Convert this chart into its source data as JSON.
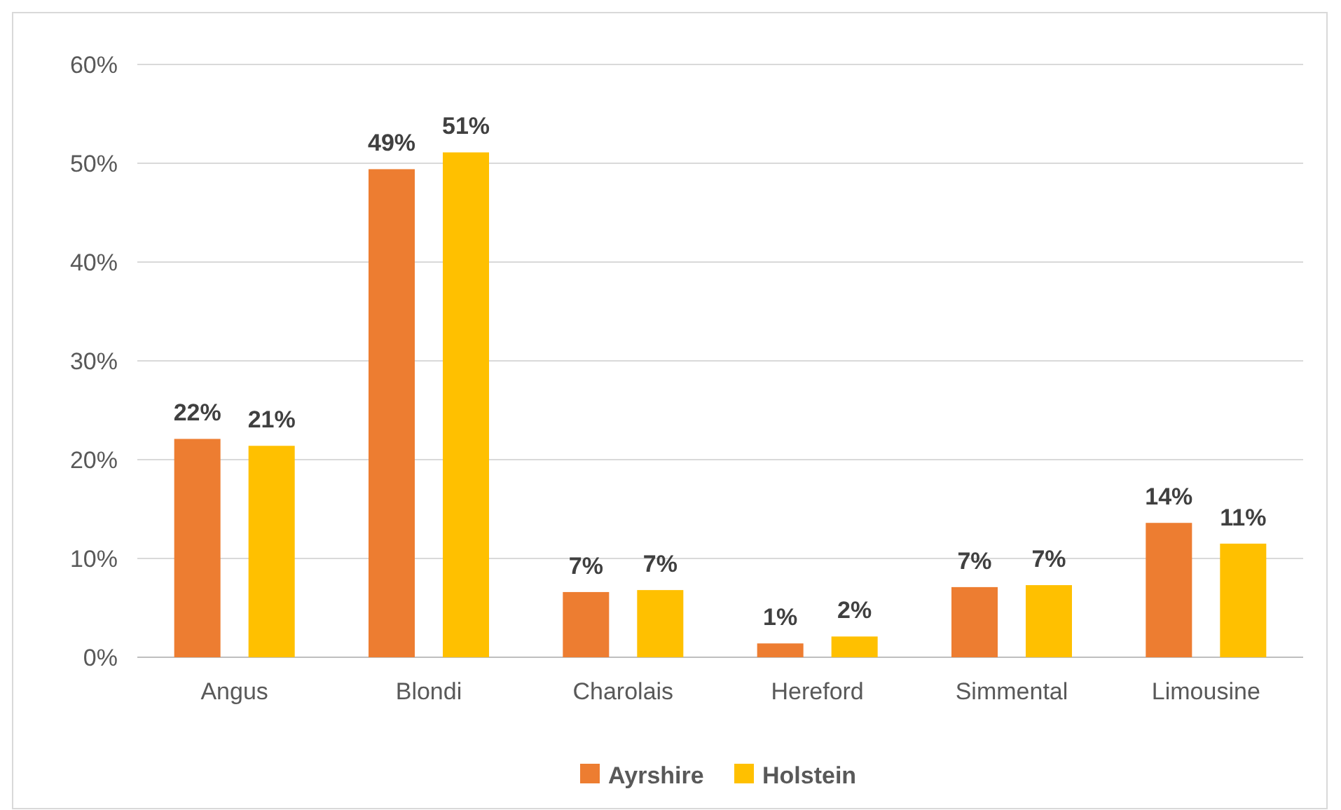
{
  "chart_data": {
    "type": "bar",
    "categories": [
      "Angus",
      "Blondi",
      "Charolais",
      "Hereford",
      "Simmental",
      "Limousine"
    ],
    "series": [
      {
        "name": "Ayrshire",
        "color": "#ed7d31",
        "values": [
          22.1,
          49.4,
          6.6,
          1.4,
          7.1,
          13.6
        ],
        "value_labels": [
          "22%",
          "49%",
          "7%",
          "1%",
          "7%",
          "14%"
        ]
      },
      {
        "name": "Holstein",
        "color": "#ffc000",
        "values": [
          21.4,
          51.1,
          6.8,
          2.1,
          7.3,
          11.5
        ],
        "value_labels": [
          "21%",
          "51%",
          "7%",
          "2%",
          "7%",
          "11%"
        ]
      }
    ],
    "ylim": [
      0,
      60
    ],
    "yticks": [
      {
        "value": 0,
        "label": "0%"
      },
      {
        "value": 10,
        "label": "10%"
      },
      {
        "value": 20,
        "label": "20%"
      },
      {
        "value": 30,
        "label": "30%"
      },
      {
        "value": 40,
        "label": "40%"
      },
      {
        "value": 50,
        "label": "50%"
      },
      {
        "value": 60,
        "label": "60%"
      }
    ],
    "grid": "y",
    "legend": "bottom"
  }
}
